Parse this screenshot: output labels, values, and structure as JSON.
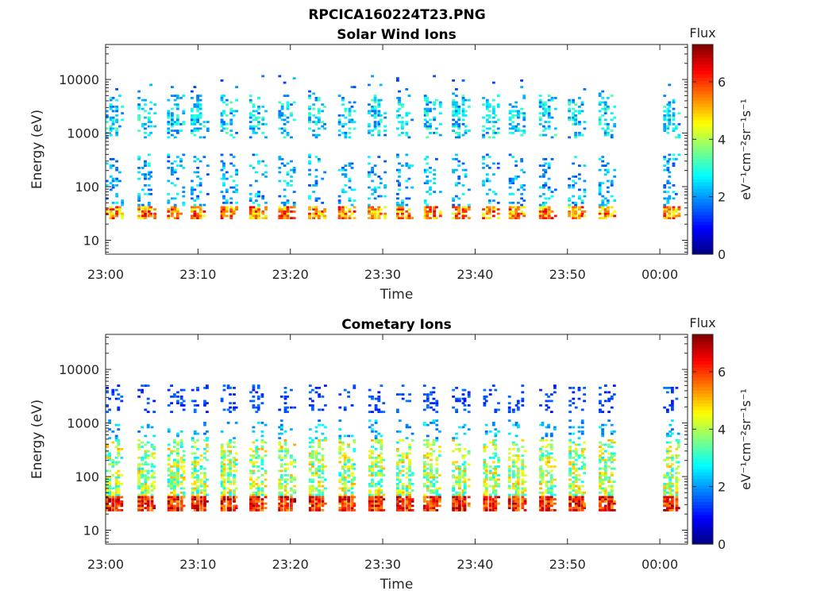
{
  "figure_title": "RPCICA160224T23.PNG",
  "colors": {
    "axis": "#262626",
    "background": "#ffffff",
    "colormap": "jet"
  },
  "chart_data": [
    {
      "type": "heatmap",
      "title": "Solar Wind Ions",
      "xlabel": "Time",
      "ylabel": "Energy (eV)",
      "x_tick_labels": [
        "23:00",
        "23:10",
        "23:20",
        "23:30",
        "23:40",
        "23:50",
        "00:00"
      ],
      "x_tick_minutes": [
        0,
        10,
        20,
        30,
        40,
        50,
        60
      ],
      "xlim_minutes": [
        0,
        63
      ],
      "y_scale": "log",
      "y_tick_labels": [
        "10",
        "100",
        "1000",
        "10000"
      ],
      "y_tick_values": [
        10,
        100,
        1000,
        10000
      ],
      "ylim": [
        5.5,
        45000
      ],
      "colorbar": {
        "label": "Flux",
        "unit": "eV⁻¹cm⁻²sr⁻¹s⁻¹",
        "range": [
          0,
          7.3
        ],
        "ticks": [
          "0",
          "2",
          "4",
          "6"
        ]
      },
      "sweep_start_minutes": [
        0,
        3.5,
        6.7,
        9.2,
        12.4,
        15.5,
        18.6,
        22.0,
        25.2,
        28.4,
        31.4,
        34.4,
        37.5,
        40.8,
        43.6,
        46.9,
        50.1,
        53.3,
        60.3
      ],
      "ion_population": "solar_wind"
    },
    {
      "type": "heatmap",
      "title": "Cometary Ions",
      "xlabel": "Time",
      "ylabel": "Energy (eV)",
      "x_tick_labels": [
        "23:00",
        "23:10",
        "23:20",
        "23:30",
        "23:40",
        "23:50",
        "00:00"
      ],
      "x_tick_minutes": [
        0,
        10,
        20,
        30,
        40,
        50,
        60
      ],
      "xlim_minutes": [
        0,
        63
      ],
      "y_scale": "log",
      "y_tick_labels": [
        "10",
        "100",
        "1000",
        "10000"
      ],
      "y_tick_values": [
        10,
        100,
        1000,
        10000
      ],
      "ylim": [
        5.5,
        45000
      ],
      "colorbar": {
        "label": "Flux",
        "unit": "eV⁻¹cm⁻²sr⁻¹s⁻¹",
        "range": [
          0,
          7.3
        ],
        "ticks": [
          "0",
          "2",
          "4",
          "6"
        ]
      },
      "sweep_start_minutes": [
        0,
        3.5,
        6.7,
        9.2,
        12.4,
        15.5,
        18.6,
        22.0,
        25.2,
        28.4,
        31.4,
        34.4,
        37.5,
        40.8,
        43.6,
        46.9,
        50.1,
        53.3,
        60.3
      ],
      "ion_population": "cometary"
    }
  ]
}
